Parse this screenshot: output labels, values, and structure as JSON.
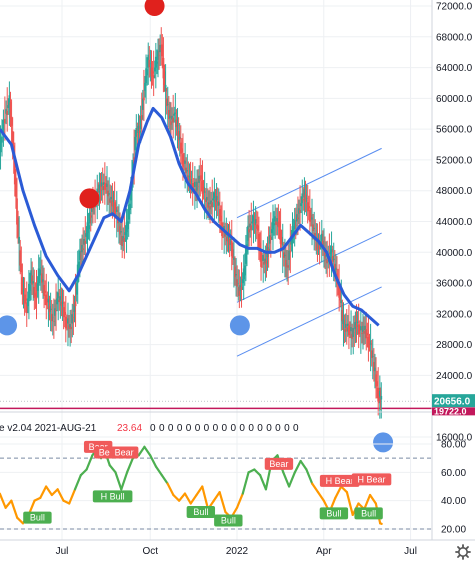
{
  "chart_data": [
    {
      "type": "line",
      "title": "",
      "y_axis_position": "right",
      "ylim": [
        15000,
        73000
      ],
      "y_ticks": [
        "72000.0",
        "68000.0",
        "64000.0",
        "60000.0",
        "56000.0",
        "52000.0",
        "48000.0",
        "44000.0",
        "40000.0",
        "36000.0",
        "32000.0",
        "28000.0",
        "24000.0",
        "16000.0"
      ],
      "x_ticks": [
        "Jul",
        "Oct",
        "2022",
        "Apr",
        "Jul"
      ],
      "x_ticks_t": [
        0.95,
        4.0,
        7.0,
        10.0,
        13.0
      ],
      "xlim": [
        -1.2,
        14.0
      ],
      "series": [
        {
          "style": "candlestick-wiggle",
          "color_up": "#26a69a",
          "color_down": "#ef5350",
          "points": [
            [
              -1.2,
              53000
            ],
            [
              -1.0,
              58000
            ],
            [
              -0.85,
              59500
            ],
            [
              -0.7,
              52000
            ],
            [
              -0.55,
              42000
            ],
            [
              -0.4,
              35000
            ],
            [
              -0.25,
              33000
            ],
            [
              -0.1,
              37000
            ],
            [
              0.05,
              34000
            ],
            [
              0.2,
              38000
            ],
            [
              0.35,
              35000
            ],
            [
              0.5,
              33000
            ],
            [
              0.65,
              31000
            ],
            [
              0.8,
              34000
            ],
            [
              0.95,
              33500
            ],
            [
              1.1,
              31000
            ],
            [
              1.25,
              30000
            ],
            [
              1.4,
              33000
            ],
            [
              1.55,
              39000
            ],
            [
              1.7,
              41000
            ],
            [
              1.85,
              43000
            ],
            [
              2.0,
              46000
            ],
            [
              2.15,
              47000
            ],
            [
              2.3,
              48500
            ],
            [
              2.45,
              49000
            ],
            [
              2.6,
              47000
            ],
            [
              2.75,
              46500
            ],
            [
              2.9,
              44000
            ],
            [
              3.05,
              41500
            ],
            [
              3.2,
              43000
            ],
            [
              3.35,
              48000
            ],
            [
              3.5,
              55000
            ],
            [
              3.65,
              56000
            ],
            [
              3.8,
              61000
            ],
            [
              3.95,
              65000
            ],
            [
              4.1,
              63000
            ],
            [
              4.25,
              65000
            ],
            [
              4.4,
              67000
            ],
            [
              4.55,
              60000
            ],
            [
              4.7,
              57000
            ],
            [
              4.85,
              58000
            ],
            [
              5.0,
              55000
            ],
            [
              5.15,
              52000
            ],
            [
              5.3,
              50000
            ],
            [
              5.45,
              49000
            ],
            [
              5.6,
              48000
            ],
            [
              5.75,
              50000
            ],
            [
              5.9,
              47000
            ],
            [
              6.05,
              46000
            ],
            [
              6.2,
              47000
            ],
            [
              6.35,
              46500
            ],
            [
              6.5,
              43000
            ],
            [
              6.65,
              42000
            ],
            [
              6.8,
              41500
            ],
            [
              6.95,
              37000
            ],
            [
              7.1,
              35000
            ],
            [
              7.25,
              37000
            ],
            [
              7.4,
              43000
            ],
            [
              7.55,
              44000
            ],
            [
              7.7,
              43500
            ],
            [
              7.85,
              39000
            ],
            [
              8.0,
              38500
            ],
            [
              8.15,
              42000
            ],
            [
              8.3,
              44000
            ],
            [
              8.45,
              44000
            ],
            [
              8.6,
              40000
            ],
            [
              8.75,
              38000
            ],
            [
              8.9,
              42000
            ],
            [
              9.05,
              44000
            ],
            [
              9.2,
              46000
            ],
            [
              9.35,
              47500
            ],
            [
              9.5,
              45500
            ],
            [
              9.65,
              43000
            ],
            [
              9.8,
              41000
            ],
            [
              9.95,
              41500
            ],
            [
              10.1,
              39000
            ],
            [
              10.25,
              40000
            ],
            [
              10.4,
              38000
            ],
            [
              10.55,
              35000
            ],
            [
              10.7,
              30000
            ],
            [
              10.85,
              30500
            ],
            [
              11.0,
              29000
            ],
            [
              11.15,
              31000
            ],
            [
              11.3,
              29500
            ],
            [
              11.45,
              30000
            ],
            [
              11.6,
              28000
            ],
            [
              11.75,
              25000
            ],
            [
              11.9,
              21500
            ],
            [
              12.0,
              20656
            ]
          ]
        },
        {
          "name": "",
          "style": "moving-average",
          "color": "#2b5bd6",
          "points": [
            [
              -1.2,
              56000
            ],
            [
              -0.8,
              54000
            ],
            [
              -0.4,
              48000
            ],
            [
              0.0,
              43500
            ],
            [
              0.4,
              39500
            ],
            [
              0.8,
              37000
            ],
            [
              1.2,
              35000
            ],
            [
              1.5,
              37000
            ],
            [
              1.8,
              39500
            ],
            [
              2.1,
              42000
            ],
            [
              2.4,
              44500
            ],
            [
              2.7,
              45000
            ],
            [
              3.0,
              44000
            ],
            [
              3.3,
              48000
            ],
            [
              3.6,
              54000
            ],
            [
              3.9,
              57000
            ],
            [
              4.1,
              58700
            ],
            [
              4.4,
              57500
            ],
            [
              4.7,
              55000
            ],
            [
              5.0,
              51500
            ],
            [
              5.3,
              49000
            ],
            [
              5.6,
              47500
            ],
            [
              5.9,
              45500
            ],
            [
              6.2,
              44000
            ],
            [
              6.5,
              43000
            ],
            [
              6.8,
              42000
            ],
            [
              7.1,
              41000
            ],
            [
              7.4,
              40500
            ],
            [
              7.7,
              40500
            ],
            [
              8.0,
              40000
            ],
            [
              8.3,
              40000
            ],
            [
              8.6,
              40500
            ],
            [
              8.9,
              42000
            ],
            [
              9.2,
              43500
            ],
            [
              9.5,
              42500
            ],
            [
              9.8,
              41500
            ],
            [
              10.1,
              40000
            ],
            [
              10.4,
              37000
            ],
            [
              10.7,
              34500
            ],
            [
              11.0,
              33000
            ],
            [
              11.3,
              32500
            ],
            [
              11.6,
              31500
            ],
            [
              11.9,
              30500
            ]
          ]
        }
      ],
      "channel_lines": [
        {
          "color": "#5a8ef0",
          "points": [
            [
              7.0,
              44500
            ],
            [
              12.0,
              53500
            ]
          ]
        },
        {
          "color": "#5a8ef0",
          "points": [
            [
              7.0,
              33500
            ],
            [
              12.0,
              42500
            ]
          ]
        },
        {
          "color": "#5a8ef0",
          "points": [
            [
              7.0,
              26500
            ],
            [
              12.0,
              35500
            ]
          ]
        }
      ],
      "dots": [
        {
          "color": "#e0211d",
          "t": 4.15,
          "v": 72000
        },
        {
          "color": "#e0211d",
          "t": 1.9,
          "v": 47000
        },
        {
          "color": "#5d95e8",
          "t": -0.95,
          "v": 30500
        },
        {
          "color": "#5d95e8",
          "t": 7.1,
          "v": 30500
        },
        {
          "color": "#5d95e8",
          "t": 12.05,
          "v": 15300
        }
      ],
      "horizontal_line": {
        "value": 19722.0,
        "color": "#c2185b"
      },
      "last_price": {
        "label": "20656.0",
        "value": 20656.0,
        "color": "#26a69a"
      },
      "line_label": {
        "label": "19722.0",
        "color": "#c2185b"
      }
    },
    {
      "type": "line",
      "title": "e v2.04 2021-AUG-21",
      "value_label": "23.64",
      "zeros": "0 0 0 0 0 0 0 0 0 0 0 0 0 0 0 0 0",
      "ylim": [
        15,
        90
      ],
      "y_ticks": [
        "80.00",
        "60.00",
        "40.00",
        "20.00"
      ],
      "dashed_levels": [
        70,
        20
      ],
      "series": [
        {
          "style": "oscillator",
          "color_high": "#4caf50",
          "color_low": "#ff9800",
          "points": [
            [
              -1.2,
              45
            ],
            [
              -1.0,
              35
            ],
            [
              -0.8,
              40
            ],
            [
              -0.6,
              28
            ],
            [
              -0.4,
              24
            ],
            [
              -0.2,
              30
            ],
            [
              0.0,
              40
            ],
            [
              0.2,
              42
            ],
            [
              0.4,
              50
            ],
            [
              0.6,
              44
            ],
            [
              0.8,
              48
            ],
            [
              1.0,
              40
            ],
            [
              1.2,
              38
            ],
            [
              1.4,
              48
            ],
            [
              1.6,
              58
            ],
            [
              1.8,
              62
            ],
            [
              2.0,
              72
            ],
            [
              2.15,
              76
            ],
            [
              2.3,
              70
            ],
            [
              2.45,
              74
            ],
            [
              2.6,
              65
            ],
            [
              2.8,
              60
            ],
            [
              3.0,
              48
            ],
            [
              3.2,
              60
            ],
            [
              3.4,
              70
            ],
            [
              3.6,
              72
            ],
            [
              3.8,
              78
            ],
            [
              4.0,
              72
            ],
            [
              4.2,
              64
            ],
            [
              4.4,
              58
            ],
            [
              4.6,
              52
            ],
            [
              4.8,
              44
            ],
            [
              5.0,
              40
            ],
            [
              5.2,
              45
            ],
            [
              5.4,
              38
            ],
            [
              5.6,
              44
            ],
            [
              5.8,
              50
            ],
            [
              6.0,
              34
            ],
            [
              6.2,
              40
            ],
            [
              6.4,
              46
            ],
            [
              6.6,
              32
            ],
            [
              6.8,
              28
            ],
            [
              7.0,
              35
            ],
            [
              7.2,
              45
            ],
            [
              7.4,
              60
            ],
            [
              7.6,
              62
            ],
            [
              7.8,
              58
            ],
            [
              8.0,
              48
            ],
            [
              8.2,
              68
            ],
            [
              8.4,
              72
            ],
            [
              8.6,
              60
            ],
            [
              8.8,
              50
            ],
            [
              9.0,
              60
            ],
            [
              9.2,
              68
            ],
            [
              9.4,
              62
            ],
            [
              9.6,
              52
            ],
            [
              9.8,
              46
            ],
            [
              10.0,
              40
            ],
            [
              10.2,
              32
            ],
            [
              10.4,
              42
            ],
            [
              10.6,
              50
            ],
            [
              10.8,
              46
            ],
            [
              11.0,
              30
            ],
            [
              11.2,
              38
            ],
            [
              11.4,
              34
            ],
            [
              11.6,
              44
            ],
            [
              11.8,
              38
            ],
            [
              11.95,
              24
            ],
            [
              12.0,
              23.64
            ]
          ]
        }
      ],
      "signals": [
        {
          "label": "Bear",
          "type": "bear",
          "t": 2.2,
          "v": 78
        },
        {
          "label": "Bear",
          "type": "bear",
          "t": 2.55,
          "v": 74
        },
        {
          "label": "Bear",
          "type": "bear",
          "t": 3.1,
          "v": 74
        },
        {
          "label": "H Bull",
          "type": "bull",
          "t": 2.7,
          "v": 43
        },
        {
          "label": "Bull",
          "type": "bull",
          "t": 0.1,
          "v": 28
        },
        {
          "label": "Bull",
          "type": "bull",
          "t": 5.75,
          "v": 32
        },
        {
          "label": "Bull",
          "type": "bull",
          "t": 6.7,
          "v": 26
        },
        {
          "label": "Bear",
          "type": "bear",
          "t": 8.45,
          "v": 66
        },
        {
          "label": "H Bear",
          "type": "bear",
          "t": 10.55,
          "v": 54
        },
        {
          "label": "Bull",
          "type": "bull",
          "t": 10.35,
          "v": 31
        },
        {
          "label": "H Bear",
          "type": "bear",
          "t": 11.65,
          "v": 55
        },
        {
          "label": "Bull",
          "type": "bull",
          "t": 11.55,
          "v": 31
        }
      ]
    }
  ],
  "colors": {
    "bull_badge": "#4caf50",
    "bear_badge": "#f05a5a",
    "grid": "#eef0f3"
  },
  "icons": {
    "settings": "gear-icon"
  }
}
